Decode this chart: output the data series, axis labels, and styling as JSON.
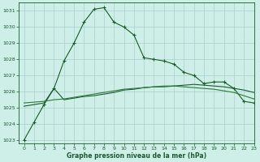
{
  "title": "Graphe pression niveau de la mer (hPa)",
  "background_color": "#ceeee8",
  "grid_color": "#aacfcf",
  "line_color_dark": "#1a5c2a",
  "line_color_mid": "#2d7a3a",
  "xlim": [
    -0.5,
    23
  ],
  "ylim": [
    1022.8,
    1031.5
  ],
  "xticks": [
    0,
    1,
    2,
    3,
    4,
    5,
    6,
    7,
    8,
    9,
    10,
    11,
    12,
    13,
    14,
    15,
    16,
    17,
    18,
    19,
    20,
    21,
    22,
    23
  ],
  "yticks": [
    1023,
    1024,
    1025,
    1026,
    1027,
    1028,
    1029,
    1030,
    1031
  ],
  "series1_x": [
    0,
    1,
    2,
    3,
    4,
    5,
    6,
    7,
    8,
    9,
    10,
    11,
    12,
    13,
    14,
    15,
    16,
    17,
    18,
    19,
    20,
    21,
    22,
    23
  ],
  "series1_y": [
    1023.0,
    1024.1,
    1025.2,
    1026.2,
    1027.9,
    1029.0,
    1030.3,
    1031.1,
    1031.2,
    1030.3,
    1030.0,
    1029.5,
    1028.1,
    1028.0,
    1027.9,
    1027.7,
    1027.2,
    1027.0,
    1026.5,
    1026.6,
    1026.6,
    1026.2,
    1025.4,
    1025.3
  ],
  "series2_x": [
    0,
    1,
    2,
    3,
    4,
    5,
    6,
    7,
    8,
    9,
    10,
    11,
    12,
    13,
    14,
    15,
    16,
    17,
    18,
    19,
    20,
    21,
    22,
    23
  ],
  "series2_y": [
    1025.1,
    1025.2,
    1025.3,
    1026.2,
    1025.5,
    1025.6,
    1025.7,
    1025.75,
    1025.85,
    1025.95,
    1026.1,
    1026.15,
    1026.25,
    1026.3,
    1026.3,
    1026.35,
    1026.4,
    1026.45,
    1026.4,
    1026.35,
    1026.3,
    1026.2,
    1026.1,
    1025.95
  ],
  "series3_x": [
    0,
    1,
    2,
    3,
    4,
    5,
    6,
    7,
    8,
    9,
    10,
    11,
    12,
    13,
    14,
    15,
    16,
    17,
    18,
    19,
    20,
    21,
    22,
    23
  ],
  "series3_y": [
    1025.3,
    1025.35,
    1025.4,
    1025.5,
    1025.55,
    1025.65,
    1025.75,
    1025.85,
    1025.95,
    1026.05,
    1026.15,
    1026.2,
    1026.25,
    1026.3,
    1026.35,
    1026.35,
    1026.3,
    1026.25,
    1026.2,
    1026.15,
    1026.05,
    1025.95,
    1025.75,
    1025.55
  ]
}
